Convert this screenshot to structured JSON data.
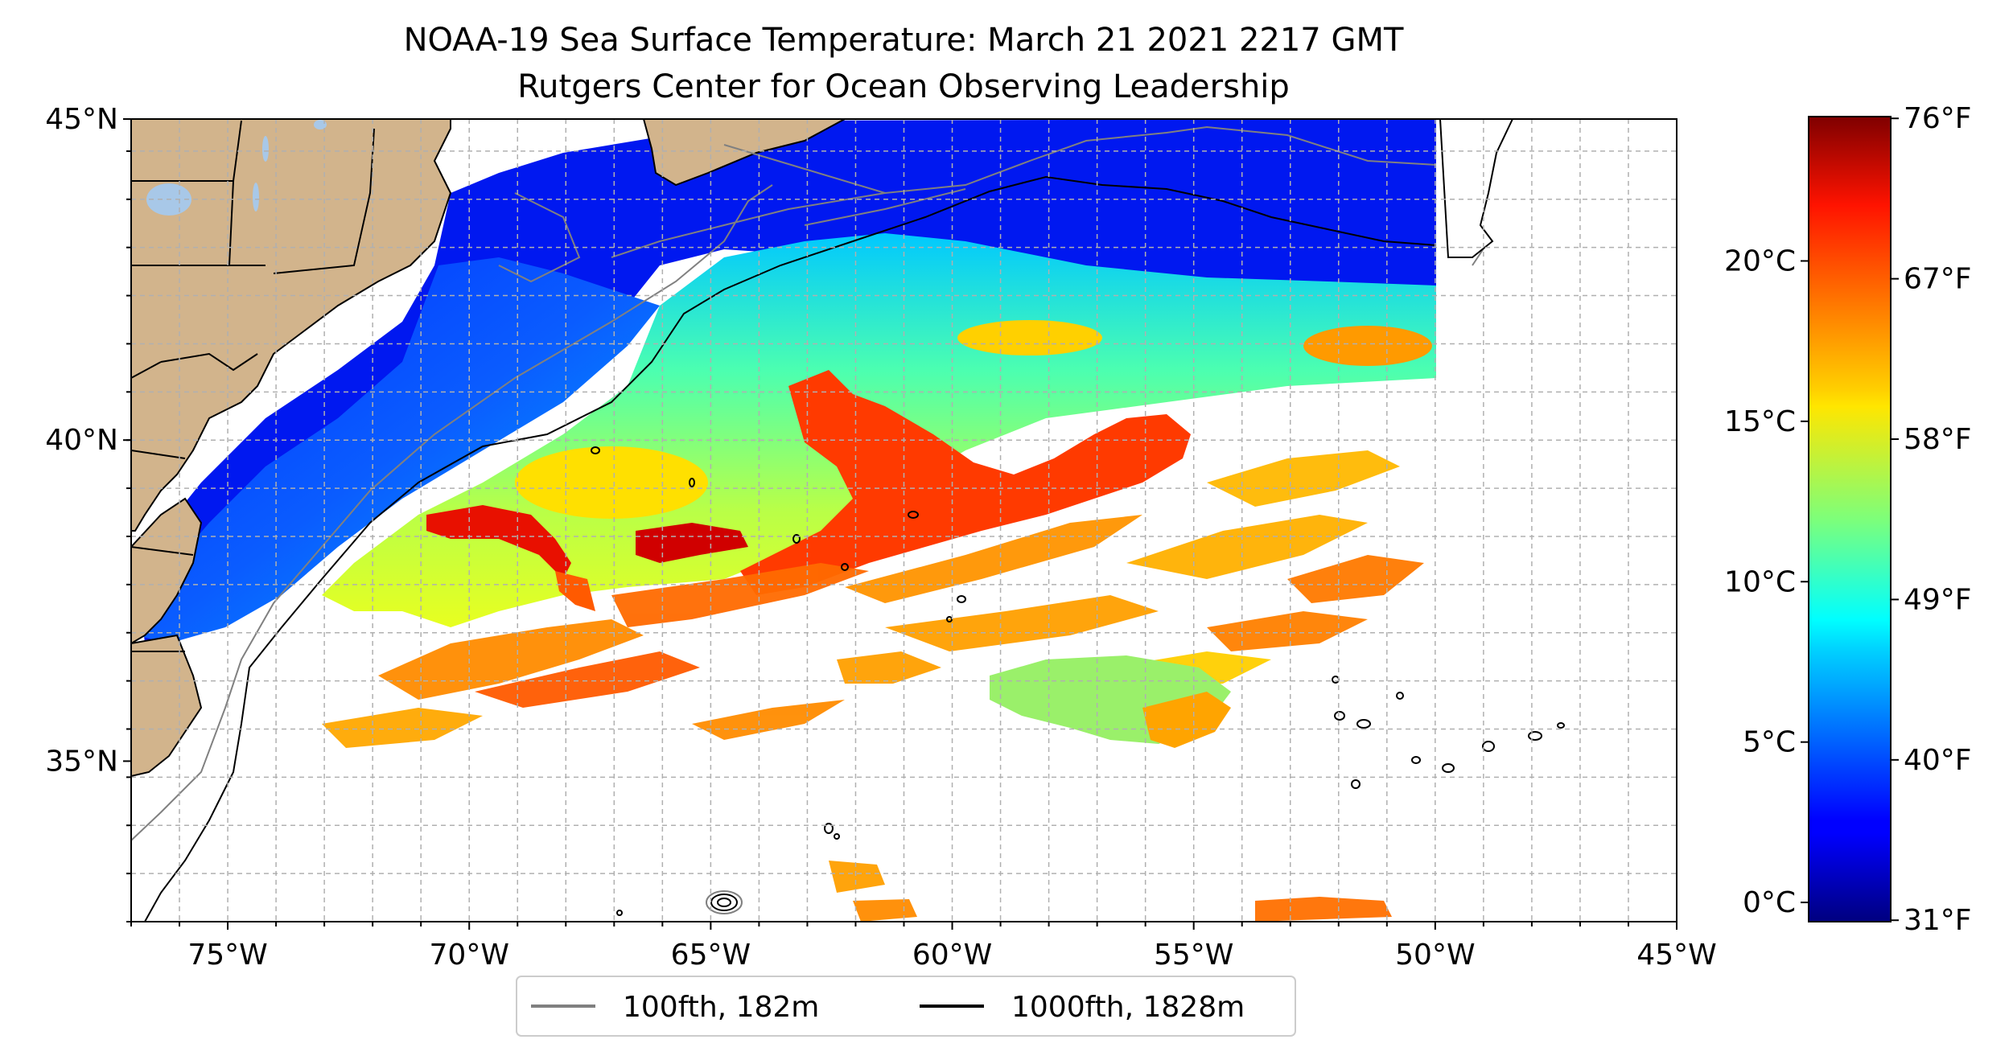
{
  "title": {
    "line1": "NOAA-19 Sea Surface Temperature: March 21 2021 2217 GMT",
    "line2": "Rutgers Center for Ocean Observing Leadership"
  },
  "map": {
    "lon_range": [
      -77,
      -45
    ],
    "lat_range": [
      32.5,
      45
    ],
    "gridlines": true,
    "x_ticks": [
      {
        "lon": -75,
        "label": "75°W"
      },
      {
        "lon": -70,
        "label": "70°W"
      },
      {
        "lon": -65,
        "label": "65°W"
      },
      {
        "lon": -60,
        "label": "60°W"
      },
      {
        "lon": -55,
        "label": "55°W"
      },
      {
        "lon": -50,
        "label": "50°W"
      },
      {
        "lon": -45,
        "label": "45°W"
      }
    ],
    "y_ticks": [
      {
        "lat": 45,
        "label": "45°N"
      },
      {
        "lat": 40,
        "label": "40°N"
      },
      {
        "lat": 35,
        "label": "35°N"
      }
    ],
    "colors": {
      "land": "#d2b48c",
      "lakes": "#a8c8e8",
      "contour_100fth": "#808080",
      "contour_1000fth": "#000000",
      "grid": "#b0b0b0"
    }
  },
  "legend": {
    "placement": "bottom-center",
    "items": [
      {
        "label": "100fth, 182m",
        "color": "#808080"
      },
      {
        "label": "1000fth, 1828m",
        "color": "#000000"
      }
    ]
  },
  "colorbar": {
    "colormap": "jet",
    "celsius_range": [
      -0.6,
      24.5
    ],
    "celsius_ticks": [
      {
        "value": 0,
        "label": "0°C"
      },
      {
        "value": 5,
        "label": "5°C"
      },
      {
        "value": 10,
        "label": "10°C"
      },
      {
        "value": 15,
        "label": "15°C"
      },
      {
        "value": 20,
        "label": "20°C"
      }
    ],
    "fahrenheit_ticks": [
      {
        "value": 31,
        "label": "31°F"
      },
      {
        "value": 40,
        "label": "40°F"
      },
      {
        "value": 49,
        "label": "49°F"
      },
      {
        "value": 58,
        "label": "58°F"
      },
      {
        "value": 67,
        "label": "67°F"
      },
      {
        "value": 76,
        "label": "76°F"
      }
    ]
  }
}
